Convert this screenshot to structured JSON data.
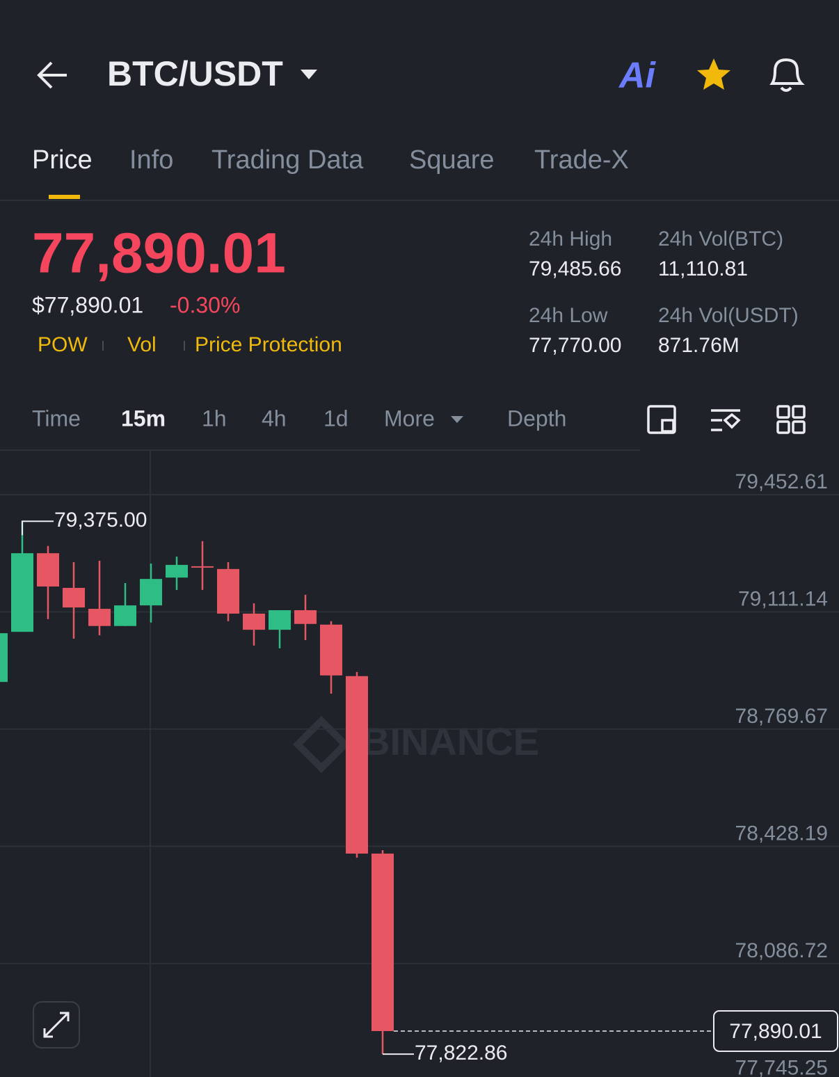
{
  "header": {
    "pair": "BTC/USDT",
    "ai": "Ai"
  },
  "tabs": [
    "Price",
    "Info",
    "Trading Data",
    "Square",
    "Trade-X"
  ],
  "price": {
    "last": "77,890.01",
    "fiat": "$77,890.01",
    "change": "-0.30%",
    "tags": [
      "POW",
      "Vol",
      "Price Protection"
    ]
  },
  "stats": [
    {
      "label": "24h High",
      "value": "79,485.66"
    },
    {
      "label": "24h Vol(BTC)",
      "value": "11,110.81"
    },
    {
      "label": "24h Low",
      "value": "77,770.00"
    },
    {
      "label": "24h Vol(USDT)",
      "value": "871.76M"
    }
  ],
  "intervals": [
    "Time",
    "15m",
    "1h",
    "4h",
    "1d",
    "More",
    "Depth"
  ],
  "chart_data": {
    "type": "candlestick",
    "watermark": "BINANCE",
    "up_color": "#2ebd85",
    "down_color": "#e65663",
    "categories": [
      null,
      null,
      null,
      null,
      null,
      null,
      null,
      null,
      null,
      null,
      null,
      null,
      null,
      null,
      null,
      null
    ],
    "open": [
      78907,
      79053,
      79282,
      79181,
      79120,
      79070,
      79130,
      79211,
      79244,
      79236,
      79106,
      79059,
      79116,
      79074,
      78924,
      78407
    ],
    "high": [
      79060,
      79375,
      79303,
      79256,
      79260,
      79195,
      79252,
      79272,
      79317,
      79256,
      79136,
      79116,
      79161,
      79084,
      78936,
      78417
    ],
    "low": [
      78900,
      79053,
      79090,
      79033,
      79043,
      79070,
      79080,
      79175,
      79175,
      79084,
      79013,
      79005,
      79029,
      78873,
      78395,
      77822.86
    ],
    "close": [
      79049,
      79282,
      79185,
      79124,
      79070,
      79130,
      79207,
      79248,
      79240,
      79106,
      79059,
      79116,
      79076,
      78926,
      78407,
      77890.01
    ],
    "high_label": "79,375.00",
    "low_label": "77,822.86",
    "last_label": "77,890.01",
    "ylim": [
      77740,
      79580
    ],
    "yticks": [
      {
        "value": 79452.61,
        "label": "79,452.61"
      },
      {
        "value": 79111.14,
        "label": "79,111.14"
      },
      {
        "value": 78769.67,
        "label": "78,769.67"
      },
      {
        "value": 78428.19,
        "label": "78,428.19"
      },
      {
        "value": 78086.72,
        "label": "78,086.72"
      },
      {
        "value": 77745.25,
        "label": "77,745.25"
      }
    ],
    "grid": true
  }
}
